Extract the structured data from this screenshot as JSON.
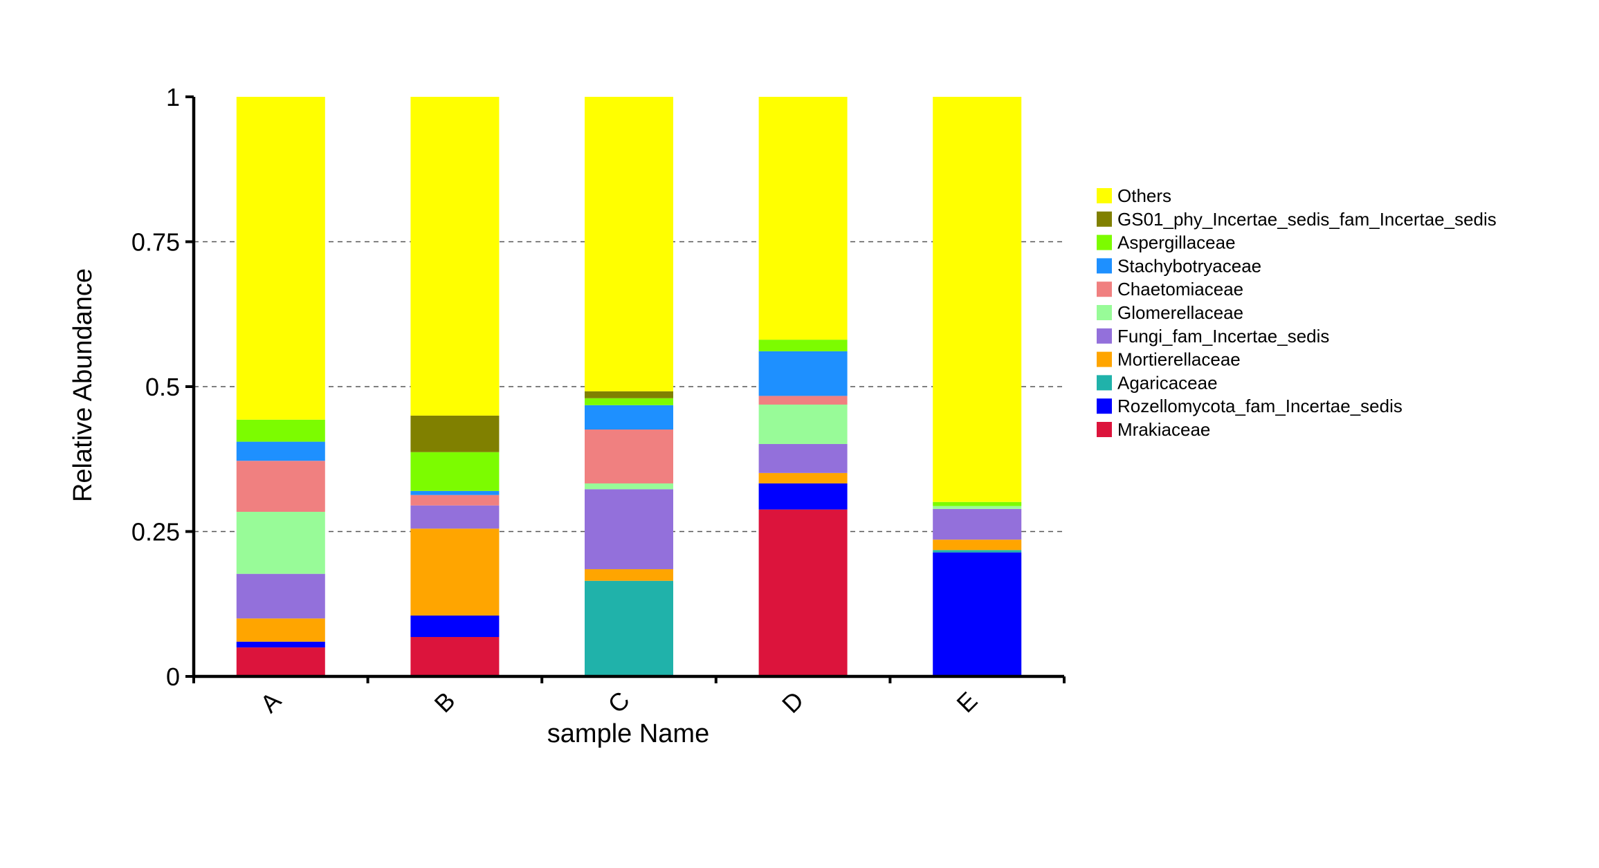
{
  "chart_data": {
    "type": "bar",
    "stacked": true,
    "title": "",
    "xlabel": "sample Name",
    "ylabel": "Relative Abundance",
    "ylim": [
      0,
      1
    ],
    "yticks": [
      {
        "value": 0,
        "label": "0"
      },
      {
        "value": 0.25,
        "label": "0.25"
      },
      {
        "value": 0.5,
        "label": "0.5"
      },
      {
        "value": 0.75,
        "label": "0.75"
      },
      {
        "value": 1,
        "label": "1"
      }
    ],
    "grid": "dashed horizontal at 0.25, 0.5, 0.75",
    "legend_position": "right",
    "categories": [
      "A",
      "B",
      "C",
      "D",
      "E"
    ],
    "series": [
      {
        "name": "Mrakiaceae",
        "color": "#DC143C",
        "values": [
          0.05,
          0.068,
          0.0,
          0.288,
          0.0
        ]
      },
      {
        "name": "Rozellomycota_fam_Incertae_sedis",
        "color": "#0000FF",
        "values": [
          0.01,
          0.037,
          0.0,
          0.045,
          0.214
        ]
      },
      {
        "name": "Agaricaceae",
        "color": "#20B2AA",
        "values": [
          0.0,
          0.0,
          0.165,
          0.0,
          0.004
        ]
      },
      {
        "name": "Mortierellaceae",
        "color": "#FFA500",
        "values": [
          0.04,
          0.15,
          0.02,
          0.018,
          0.018
        ]
      },
      {
        "name": "Fungi_fam_Incertae_sedis",
        "color": "#9370DB",
        "values": [
          0.077,
          0.04,
          0.138,
          0.05,
          0.053
        ]
      },
      {
        "name": "Glomerellaceae",
        "color": "#98FB98",
        "values": [
          0.107,
          0.0,
          0.01,
          0.068,
          0.005
        ]
      },
      {
        "name": "Chaetomiaceae",
        "color": "#F08080",
        "values": [
          0.088,
          0.018,
          0.093,
          0.015,
          0.0
        ]
      },
      {
        "name": "Stachybotryaceae",
        "color": "#1E90FF",
        "values": [
          0.033,
          0.007,
          0.042,
          0.077,
          0.0
        ]
      },
      {
        "name": "Aspergillaceae",
        "color": "#7CFC00",
        "values": [
          0.038,
          0.067,
          0.012,
          0.02,
          0.007
        ]
      },
      {
        "name": "GS01_phy_Incertae_sedis_fam_Incertae_sedis",
        "color": "#808000",
        "values": [
          0.0,
          0.063,
          0.012,
          0.0,
          0.0
        ]
      },
      {
        "name": "Others",
        "color": "#FFFF00",
        "values": [
          0.557,
          0.55,
          0.508,
          0.419,
          0.699
        ]
      }
    ]
  }
}
